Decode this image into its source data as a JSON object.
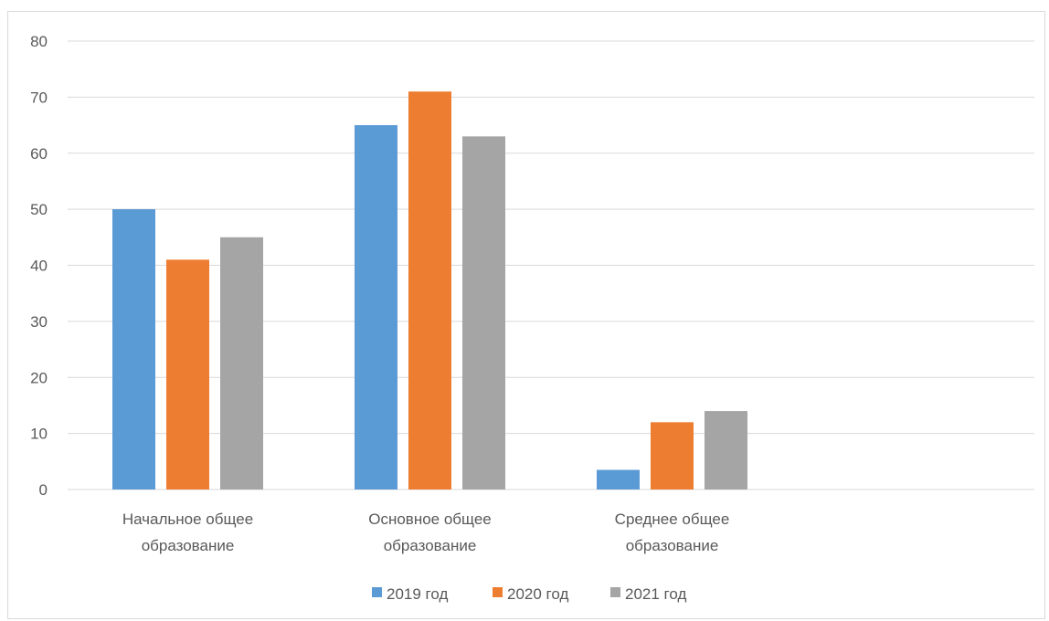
{
  "chart_data": {
    "type": "bar",
    "categories": [
      [
        "Начальное общее",
        "образование"
      ],
      [
        "Основное общее",
        "образование"
      ],
      [
        "Среднее общее",
        "образование"
      ]
    ],
    "series": [
      {
        "name": "2019 год",
        "color": "#5b9bd5",
        "values": [
          50,
          65,
          3.5
        ]
      },
      {
        "name": "2020 год",
        "color": "#ed7d31",
        "values": [
          41,
          71,
          12
        ]
      },
      {
        "name": "2021 год",
        "color": "#a5a5a5",
        "values": [
          45,
          63,
          14
        ]
      }
    ],
    "y_ticks": [
      "0",
      "10",
      "20",
      "30",
      "40",
      "50",
      "60",
      "70",
      "80"
    ],
    "ylim": [
      0,
      80
    ],
    "grid": true,
    "legend_position": "bottom",
    "gridline_color": "#d9d9d9",
    "text_color": "#595959"
  }
}
